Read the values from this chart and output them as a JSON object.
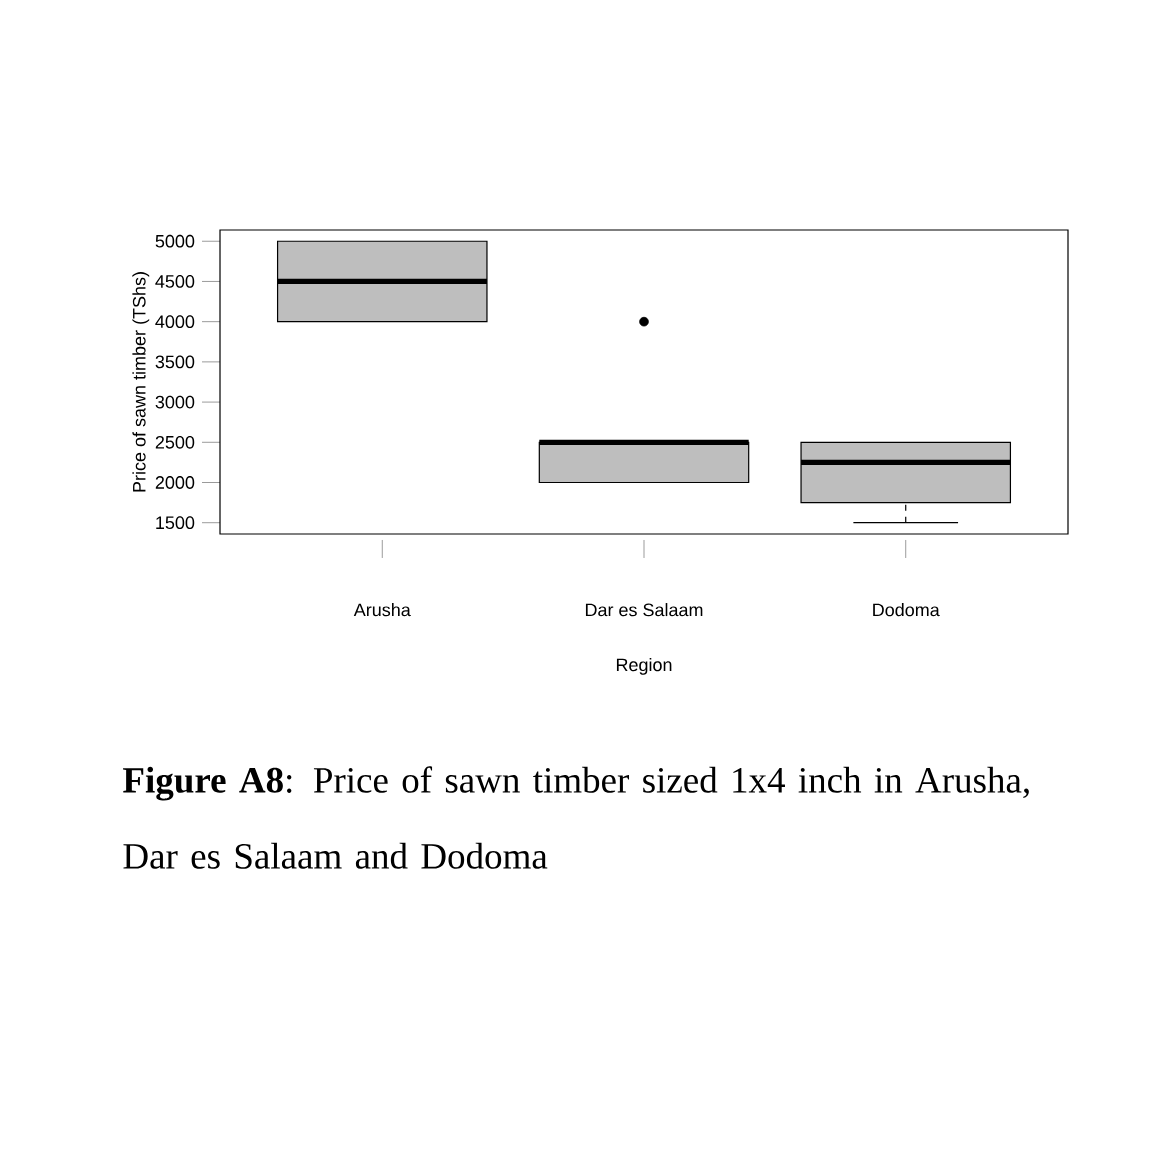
{
  "chart_data": {
    "type": "box",
    "xlabel": "Region",
    "ylabel": "Price of sawn timber (TShs)",
    "categories": [
      "Arusha",
      "Dar es Salaam",
      "Dodoma"
    ],
    "color": "#bebebe",
    "boxes": [
      {
        "low": 4000,
        "q1": 4000,
        "median": 4500,
        "q3": 5000,
        "high": 5000
      },
      {
        "low": 2000,
        "q1": 2000,
        "median": 2500,
        "q3": 2500,
        "high": 2500,
        "outliers": [
          4000
        ]
      },
      {
        "low": 1500,
        "q1": 1750,
        "median": 2250,
        "q3": 2500,
        "high": 2500
      }
    ],
    "ylim": [
      1360,
      5140
    ],
    "yticks": [
      1500,
      2000,
      2500,
      3000,
      3500,
      4000,
      4500,
      5000
    ],
    "annotations": [
      "**Figure A8**: Price of sawn timber sized 1x4 inch in Arusha, Dar es Salaam and Dodoma"
    ]
  }
}
